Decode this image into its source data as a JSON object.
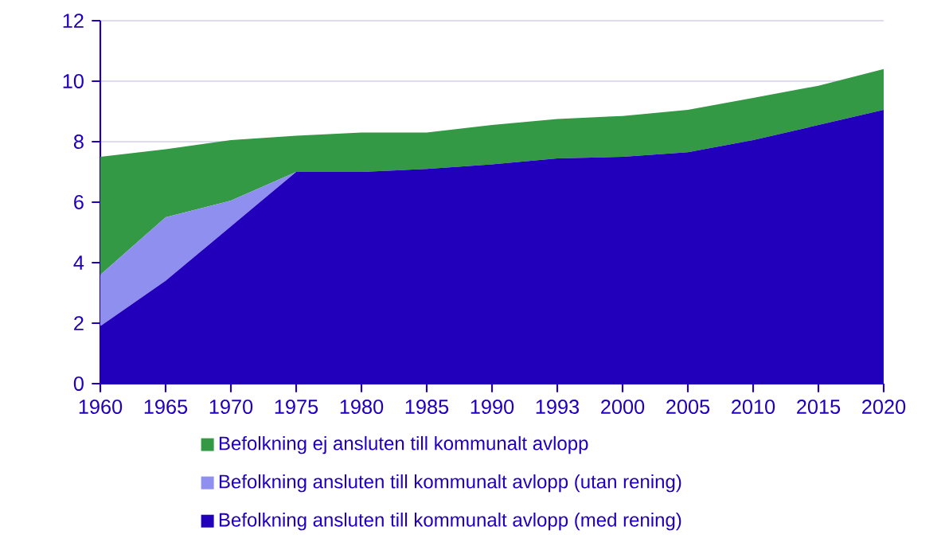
{
  "chart_data": {
    "type": "area",
    "stacked": true,
    "categories": [
      "1960",
      "1965",
      "1970",
      "1975",
      "1980",
      "1985",
      "1990",
      "1993",
      "2000",
      "2005",
      "2010",
      "2015",
      "2020"
    ],
    "series": [
      {
        "name": "Befolkning ansluten till kommunalt avlopp (med rening)",
        "color": "#2200bb",
        "values": [
          1.9,
          3.4,
          5.2,
          7.0,
          7.0,
          7.1,
          7.25,
          7.45,
          7.5,
          7.65,
          8.05,
          8.55,
          9.05
        ]
      },
      {
        "name": "Befolkning ansluten till kommunalt avlopp (utan rening)",
        "color": "#8f8ff0",
        "values": [
          1.7,
          2.1,
          0.85,
          0,
          0,
          0,
          0,
          0,
          0,
          0,
          0,
          0,
          0
        ]
      },
      {
        "name": "Befolkning ej ansluten till kommunalt avlopp",
        "color": "#339944",
        "values": [
          3.9,
          2.25,
          2.0,
          1.2,
          1.3,
          1.2,
          1.3,
          1.3,
          1.35,
          1.4,
          1.4,
          1.3,
          1.35
        ]
      }
    ],
    "ylim": [
      0,
      12
    ],
    "yticks": [
      0,
      2,
      4,
      6,
      8,
      10,
      12
    ],
    "grid": "y",
    "legend": "bottom"
  }
}
